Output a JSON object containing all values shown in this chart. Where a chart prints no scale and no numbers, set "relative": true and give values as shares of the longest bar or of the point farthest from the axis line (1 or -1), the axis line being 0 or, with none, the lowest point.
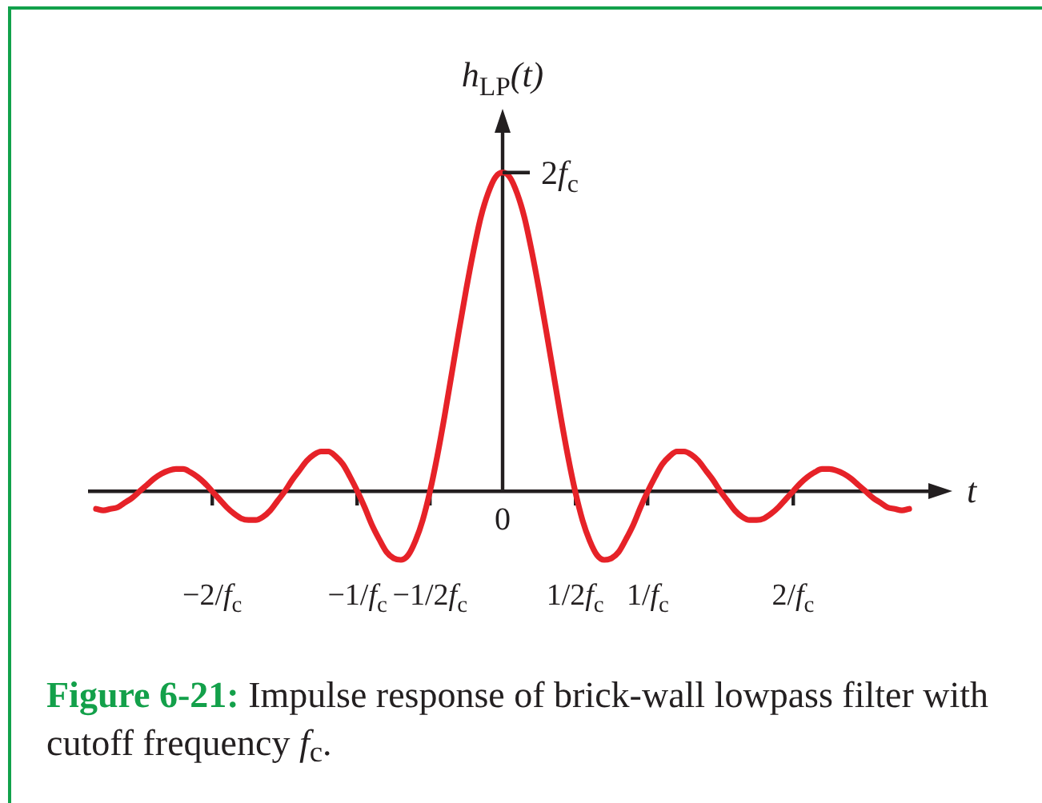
{
  "chart_data": {
    "type": "line",
    "xlabel": "t",
    "ylabel": "h$_{LP}$(t)",
    "relative": true,
    "categories": [
      null,
      null,
      null,
      null,
      null,
      null,
      null,
      null,
      null,
      null,
      null,
      null,
      null,
      null,
      null,
      null,
      "−2/f$_{c}$",
      null,
      null,
      null,
      null,
      null,
      null,
      null,
      null,
      null,
      null,
      null,
      null,
      null,
      null,
      null,
      null,
      null,
      null,
      null,
      "−1/f$_{c}$",
      null,
      null,
      null,
      null,
      null,
      null,
      null,
      null,
      null,
      "−1/2f$_{c}$",
      null,
      null,
      null,
      null,
      null,
      null,
      null,
      null,
      null,
      "0",
      null,
      null,
      null,
      null,
      null,
      null,
      null,
      null,
      null,
      "1/2f$_{c}$",
      null,
      null,
      null,
      null,
      null,
      null,
      null,
      null,
      null,
      "1/f$_{c}$",
      null,
      null,
      null,
      null,
      null,
      null,
      null,
      null,
      null,
      null,
      null,
      null,
      null,
      null,
      null,
      null,
      null,
      null,
      null,
      "2/f$_{c}$",
      null,
      null,
      null,
      null,
      null,
      null,
      null,
      null,
      null,
      null,
      null,
      null,
      null,
      null,
      null,
      null
    ],
    "values": [
      -0.055,
      -0.06,
      -0.055,
      -0.05,
      -0.035,
      -0.02,
      0,
      0.02,
      0.04,
      0.055,
      0.065,
      0.07,
      0.07,
      0.06,
      0.045,
      0.025,
      0,
      -0.025,
      -0.05,
      -0.07,
      -0.085,
      -0.09,
      -0.09,
      -0.08,
      -0.06,
      -0.03,
      0,
      0.035,
      0.065,
      0.095,
      0.115,
      0.125,
      0.125,
      0.11,
      0.085,
      0.045,
      0,
      -0.05,
      -0.105,
      -0.15,
      -0.19,
      -0.21,
      -0.215,
      -0.2,
      -0.155,
      -0.09,
      0,
      0.11,
      0.235,
      0.37,
      0.505,
      0.635,
      0.755,
      0.86,
      0.935,
      0.985,
      1,
      0.985,
      0.935,
      0.86,
      0.755,
      0.635,
      0.505,
      0.37,
      0.235,
      0.11,
      0,
      -0.09,
      -0.155,
      -0.2,
      -0.215,
      -0.21,
      -0.19,
      -0.15,
      -0.105,
      -0.05,
      0,
      0.045,
      0.085,
      0.11,
      0.125,
      0.125,
      0.115,
      0.095,
      0.065,
      0.035,
      0,
      -0.03,
      -0.06,
      -0.08,
      -0.09,
      -0.09,
      -0.085,
      -0.07,
      -0.05,
      -0.025,
      0,
      0.025,
      0.045,
      0.06,
      0.07,
      0.07,
      0.065,
      0.055,
      0.04,
      0.02,
      0,
      -0.02,
      -0.035,
      -0.05,
      -0.055,
      -0.06,
      -0.055
    ],
    "color": "#e62228",
    "annotations": [
      {
        "text": "2f$_{c}$",
        "x": "0",
        "y": 1
      },
      "Figure 6-21: Impulse response of brick-wall lowpass filter with cutoff frequency f$_{c}$."
    ]
  }
}
